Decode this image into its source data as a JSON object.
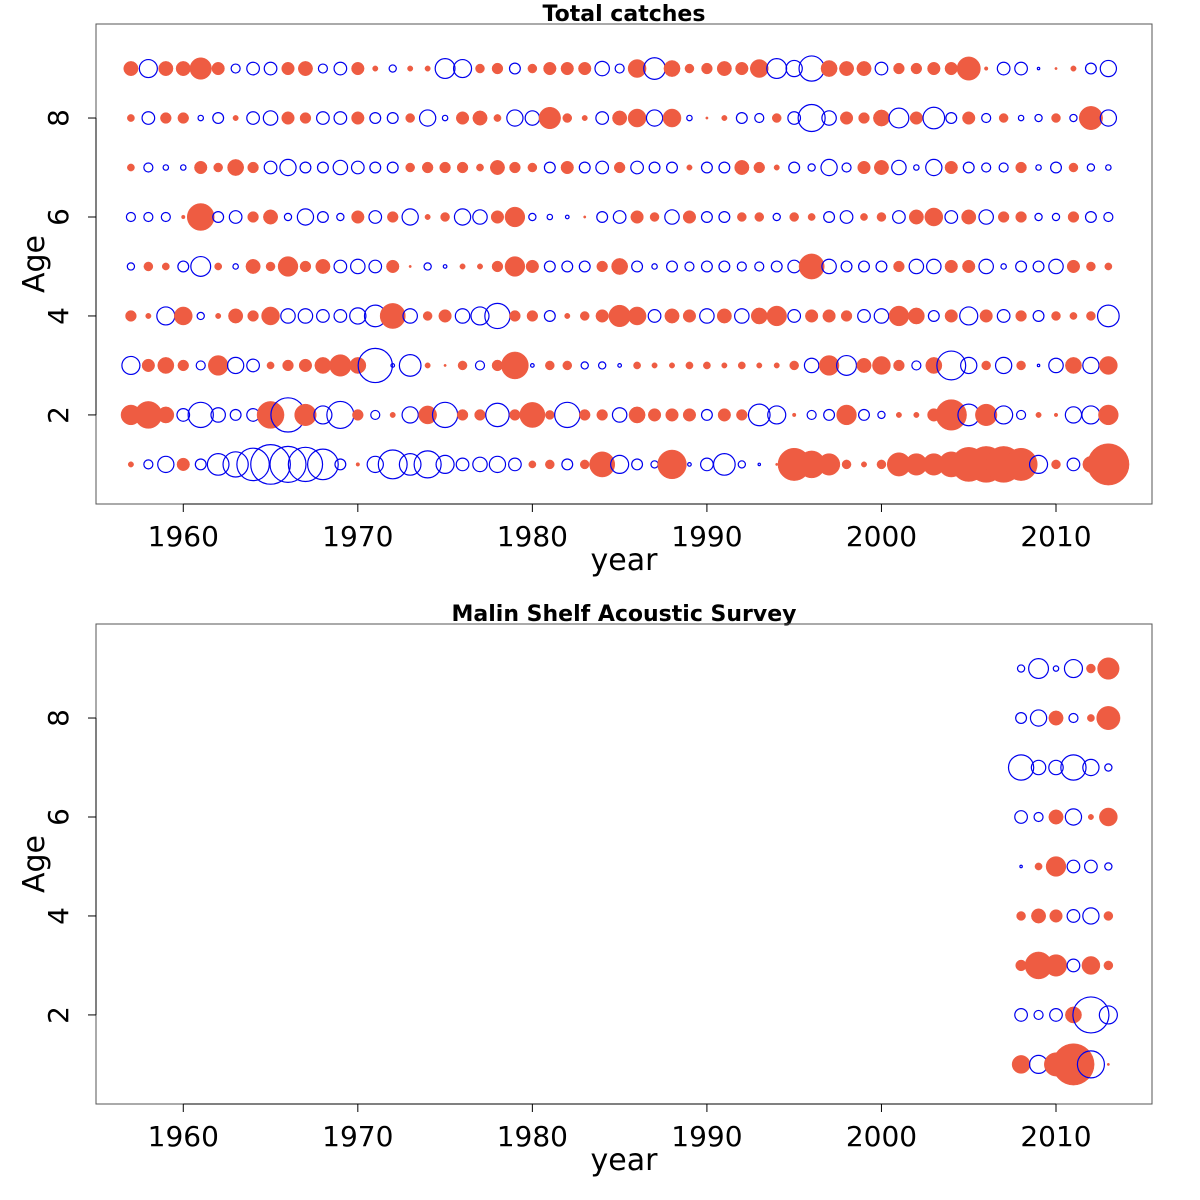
{
  "colors": {
    "positive": "#ee5c42",
    "negative": "#0000ee",
    "frame": "#555555"
  },
  "chart_data": [
    {
      "type": "scatter",
      "subtype": "bubble",
      "title": "Total catches",
      "xlabel": "year",
      "ylabel": "Age",
      "xlim": [
        1955,
        2015.5
      ],
      "ylim": [
        0.2,
        9.9
      ],
      "xticks": [
        1960,
        1970,
        1980,
        1990,
        2000,
        2010
      ],
      "yticks": [
        2,
        4,
        6,
        8
      ],
      "encoding": "filled = positive residual, open = negative residual, radius proportional to magnitude",
      "x_years": [
        1957,
        1958,
        1959,
        1960,
        1961,
        1962,
        1963,
        1964,
        1965,
        1966,
        1967,
        1968,
        1969,
        1970,
        1971,
        1972,
        1973,
        1974,
        1975,
        1976,
        1977,
        1978,
        1979,
        1980,
        1981,
        1982,
        1983,
        1984,
        1985,
        1986,
        1987,
        1988,
        1989,
        1990,
        1991,
        1992,
        1993,
        1994,
        1995,
        1996,
        1997,
        1998,
        1999,
        2000,
        2001,
        2002,
        2003,
        2004,
        2005,
        2006,
        2007,
        2008,
        2009,
        2010,
        2011,
        2012,
        2013
      ],
      "ages": [
        1,
        2,
        3,
        4,
        5,
        6,
        7,
        8,
        9
      ],
      "residuals": [
        [
          0.3,
          -0.5,
          -0.9,
          0.7,
          -0.6,
          -1.2,
          -1.4,
          -1.8,
          -2.2,
          -2.0,
          -1.9,
          -1.7,
          -0.6,
          0.2,
          -0.9,
          -1.6,
          -1.2,
          -1.5,
          -1.0,
          -0.7,
          -0.8,
          -0.9,
          -0.7,
          0.4,
          0.5,
          -0.6,
          0.5,
          1.4,
          -1.0,
          -0.6,
          -0.4,
          1.6,
          -0.2,
          -0.7,
          -1.2,
          -0.4,
          -0.1,
          0.1,
          1.8,
          1.5,
          1.2,
          0.5,
          0.3,
          0.5,
          1.3,
          1.2,
          1.2,
          1.4,
          1.9,
          2.0,
          2.0,
          1.8,
          -1.0,
          0.5,
          -0.7,
          0.9,
          2.3
        ],
        [
          1.1,
          1.5,
          0.9,
          -0.7,
          -1.4,
          -0.8,
          -0.6,
          -0.7,
          1.5,
          -1.9,
          1.2,
          -1.0,
          -1.5,
          0.6,
          -0.5,
          0.3,
          -0.9,
          1.0,
          -1.4,
          0.6,
          0.6,
          -1.3,
          0.6,
          1.4,
          0.5,
          -1.4,
          0.6,
          0.6,
          -0.8,
          0.9,
          0.7,
          0.7,
          0.7,
          -0.6,
          0.7,
          0.6,
          -1.2,
          -1.0,
          0.2,
          -0.5,
          -0.6,
          1.1,
          -0.6,
          -0.4,
          0.3,
          0.3,
          0.7,
          1.7,
          -1.2,
          1.2,
          -1.0,
          -0.5,
          0.3,
          0.2,
          -0.9,
          -1.0,
          1.1
        ],
        [
          -1.0,
          0.7,
          0.9,
          0.6,
          -0.5,
          1.1,
          -0.9,
          -0.7,
          0.4,
          0.6,
          0.7,
          0.9,
          1.2,
          0.9,
          -1.9,
          -0.2,
          -1.2,
          0.3,
          0.1,
          0.5,
          -0.5,
          0.6,
          1.5,
          -0.2,
          0.5,
          0.5,
          -0.4,
          -0.4,
          -0.2,
          0.4,
          0.3,
          0.3,
          0.4,
          0.4,
          0.3,
          0.4,
          0.3,
          0.3,
          0.5,
          -0.8,
          1.1,
          -1.1,
          0.8,
          1.0,
          0.6,
          -0.5,
          0.9,
          -1.6,
          -0.9,
          0.5,
          -0.9,
          0.5,
          -0.1,
          -0.8,
          0.9,
          -0.9,
          1.0
        ],
        [
          0.6,
          0.3,
          -1.0,
          1.0,
          -0.4,
          0.3,
          0.8,
          0.6,
          1.0,
          -0.8,
          -0.8,
          -0.7,
          -0.7,
          -0.9,
          -1.2,
          1.4,
          -0.8,
          0.5,
          0.7,
          -0.8,
          -1.0,
          -1.4,
          0.6,
          0.6,
          -0.6,
          0.3,
          0.5,
          0.7,
          1.2,
          1.0,
          -0.7,
          0.8,
          0.7,
          -0.8,
          0.8,
          -0.8,
          0.9,
          1.1,
          -0.7,
          0.7,
          0.7,
          0.6,
          -0.7,
          -0.8,
          1.1,
          0.9,
          -0.6,
          0.7,
          -1.0,
          0.7,
          -0.7,
          0.6,
          -0.6,
          0.5,
          0.4,
          0.5,
          -1.2
        ],
        [
          -0.4,
          0.5,
          0.4,
          -0.6,
          -1.1,
          0.4,
          -0.3,
          0.8,
          0.5,
          1.1,
          0.6,
          0.8,
          -0.7,
          -0.8,
          -0.7,
          0.7,
          0.1,
          -0.4,
          -0.2,
          0.3,
          0.3,
          0.6,
          1.1,
          0.7,
          -0.6,
          -0.6,
          -0.6,
          0.6,
          0.9,
          -0.6,
          -0.3,
          -0.6,
          -0.5,
          -0.6,
          -0.6,
          -0.5,
          -0.5,
          -0.6,
          -0.7,
          1.4,
          -0.8,
          -0.6,
          -0.6,
          -0.6,
          0.6,
          -0.8,
          -0.8,
          0.7,
          0.7,
          -0.8,
          -0.3,
          -0.6,
          -0.6,
          -0.8,
          0.7,
          0.5,
          0.4
        ],
        [
          -0.5,
          -0.5,
          -0.5,
          0.2,
          1.5,
          -0.6,
          -0.7,
          0.6,
          0.8,
          -0.4,
          -0.9,
          -0.6,
          -0.4,
          0.7,
          -0.7,
          0.6,
          -0.9,
          0.3,
          0.5,
          -0.9,
          -0.8,
          0.7,
          1.1,
          -0.4,
          -0.3,
          -0.2,
          0.1,
          -0.6,
          -0.7,
          0.7,
          0.5,
          -0.8,
          0.7,
          -0.6,
          -0.6,
          0.5,
          0.5,
          -0.4,
          0.5,
          0.4,
          -0.6,
          -0.7,
          0.4,
          0.5,
          -0.7,
          0.8,
          1.0,
          -0.7,
          0.8,
          -0.8,
          0.6,
          0.6,
          -0.4,
          -0.4,
          0.6,
          -0.6,
          -0.5
        ],
        [
          0.4,
          -0.5,
          -0.3,
          -0.3,
          0.7,
          0.5,
          0.9,
          0.6,
          -0.7,
          -0.9,
          -0.6,
          -0.6,
          -0.8,
          -0.7,
          -0.6,
          -0.6,
          0.5,
          0.6,
          0.6,
          0.6,
          0.4,
          0.8,
          0.6,
          0.5,
          -0.6,
          0.7,
          -0.6,
          -0.7,
          0.6,
          -0.7,
          -0.6,
          -0.6,
          0.3,
          -0.6,
          -0.6,
          0.8,
          0.6,
          0.3,
          -0.6,
          -0.4,
          -0.9,
          -0.5,
          0.7,
          0.8,
          -0.8,
          -0.3,
          -0.9,
          0.7,
          -0.6,
          -0.5,
          -0.5,
          0.6,
          -0.3,
          -0.6,
          0.5,
          -0.4,
          -0.3
        ],
        [
          0.4,
          -0.7,
          0.6,
          0.6,
          -0.3,
          -0.6,
          0.3,
          -0.7,
          -0.8,
          0.7,
          0.6,
          -0.7,
          -0.7,
          0.7,
          -0.6,
          -0.6,
          0.5,
          -0.9,
          -0.3,
          0.7,
          0.8,
          0.4,
          -0.9,
          -0.8,
          1.2,
          0.5,
          0.3,
          -0.7,
          0.8,
          1.0,
          -0.9,
          1.0,
          -0.3,
          0.1,
          0.3,
          -0.6,
          -0.5,
          0.5,
          -0.7,
          -1.5,
          -0.8,
          0.7,
          0.6,
          0.9,
          -1.1,
          0.7,
          -1.2,
          -0.6,
          0.7,
          -0.5,
          0.5,
          -0.3,
          -0.4,
          0.5,
          -0.4,
          1.3,
          -0.9
        ],
        [
          0.8,
          -1.0,
          0.8,
          0.8,
          1.2,
          0.7,
          -0.5,
          -0.7,
          -0.7,
          0.7,
          0.8,
          -0.5,
          -0.7,
          0.7,
          0.3,
          -0.4,
          0.3,
          0.3,
          -1.1,
          -1.0,
          0.5,
          0.6,
          -0.6,
          0.5,
          0.7,
          0.7,
          0.7,
          -0.8,
          -0.5,
          1.0,
          -1.2,
          0.9,
          0.5,
          0.6,
          0.8,
          0.7,
          1.0,
          -1.1,
          -0.9,
          -1.4,
          0.9,
          0.8,
          0.8,
          -0.7,
          0.6,
          0.6,
          0.7,
          0.7,
          1.3,
          0.2,
          -0.7,
          -0.7,
          -0.1,
          0.1,
          0.3,
          -0.6,
          -0.9
        ]
      ]
    },
    {
      "type": "scatter",
      "subtype": "bubble",
      "title": "Malin Shelf Acoustic Survey",
      "xlabel": "year",
      "ylabel": "Age",
      "xlim": [
        1955,
        2015.5
      ],
      "ylim": [
        0.2,
        9.9
      ],
      "xticks": [
        1960,
        1970,
        1980,
        1990,
        2000,
        2010
      ],
      "yticks": [
        2,
        4,
        6,
        8
      ],
      "encoding": "filled = positive residual, open = negative residual, radius proportional to magnitude",
      "x_years": [
        2008,
        2009,
        2010,
        2011,
        2012,
        2013
      ],
      "ages": [
        1,
        2,
        3,
        4,
        5,
        6,
        7,
        8,
        9
      ],
      "residuals": [
        [
          1.0,
          -1.0,
          1.3,
          2.3,
          -1.5,
          0.0
        ],
        [
          -0.7,
          -0.5,
          -0.7,
          0.9,
          -2.0,
          -1.0
        ],
        [
          0.6,
          1.5,
          1.2,
          -0.7,
          1.0,
          0.5
        ],
        [
          0.5,
          0.8,
          0.7,
          -0.7,
          -0.9,
          0.5
        ],
        [
          -0.1,
          0.4,
          1.1,
          -0.7,
          -0.7,
          -0.4
        ],
        [
          -0.7,
          -0.5,
          0.8,
          -0.9,
          0.3,
          1.0
        ],
        [
          -1.4,
          -0.8,
          -0.8,
          -1.4,
          -0.9,
          -0.4
        ],
        [
          -0.6,
          -0.9,
          0.8,
          -0.5,
          0.4,
          1.3
        ],
        [
          -0.4,
          -1.1,
          -0.3,
          -1.0,
          0.5,
          1.2
        ]
      ]
    }
  ]
}
